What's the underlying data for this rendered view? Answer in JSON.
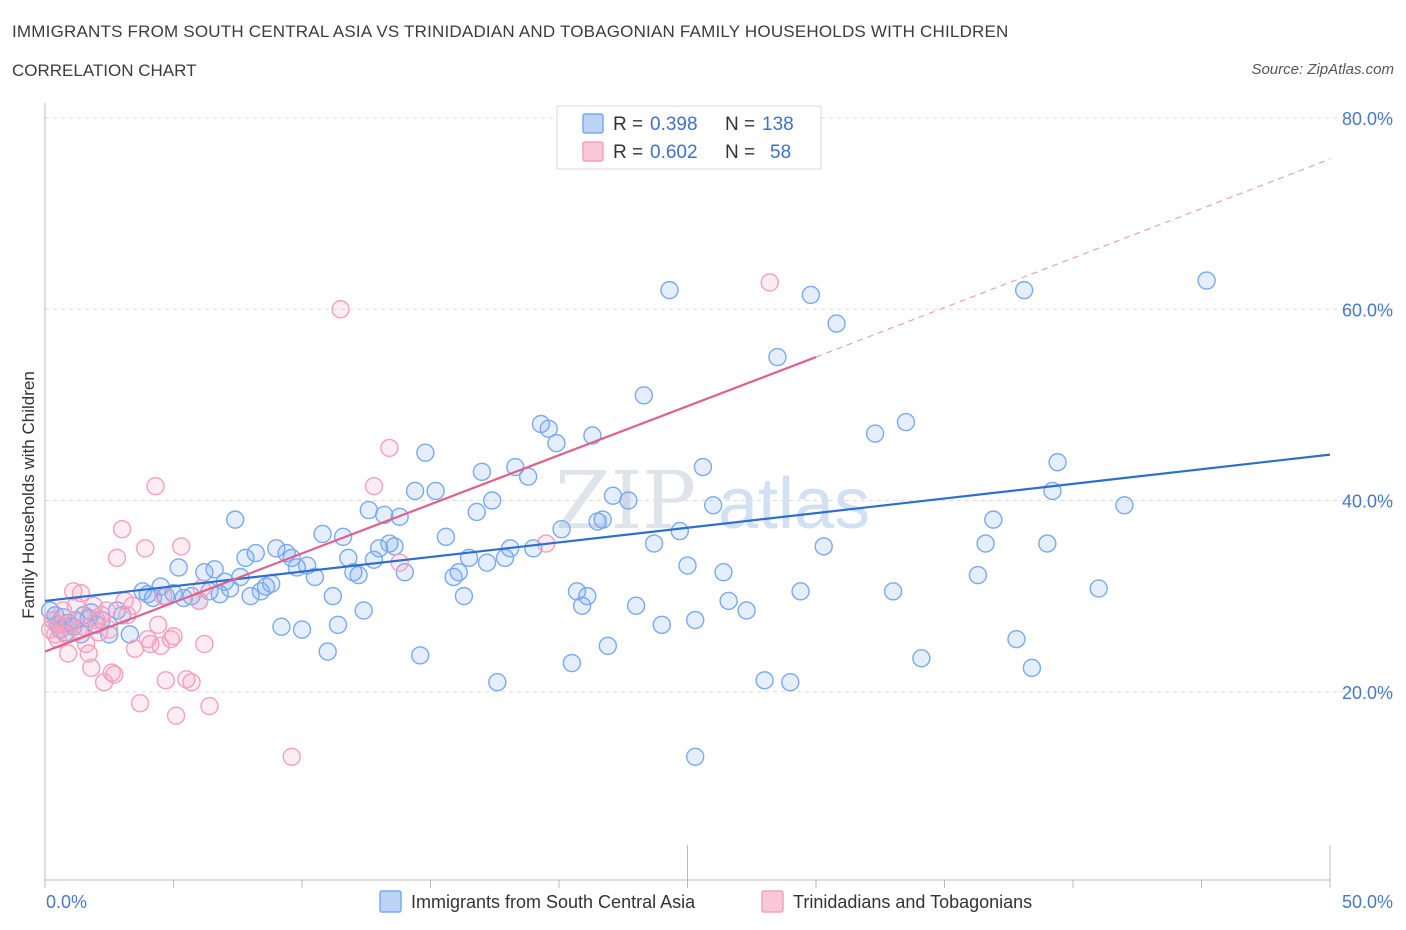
{
  "chart_data": {
    "type": "scatter",
    "title": "IMMIGRANTS FROM SOUTH CENTRAL ASIA VS TRINIDADIAN AND TOBAGONIAN FAMILY HOUSEHOLDS WITH CHILDREN",
    "subtitle": "CORRELATION CHART",
    "source": "Source: ZipAtlas.com",
    "ylabel": "Family Households with Children",
    "xlim": [
      0,
      50
    ],
    "ylim": [
      0,
      80
    ],
    "x_tick_labels": {
      "min": "0.0%",
      "max": "50.0%"
    },
    "y_ticks": [
      20,
      40,
      60,
      80
    ],
    "y_tick_labels": [
      "20.0%",
      "40.0%",
      "60.0%",
      "80.0%"
    ],
    "watermark": {
      "zip": "ZIP",
      "atlas": "atlas"
    },
    "legend": [
      {
        "r_label": "R =",
        "r_value": "0.398",
        "n_label": "N =",
        "n_value": "138"
      },
      {
        "r_label": "R =",
        "r_value": "0.602",
        "n_label": "N =",
        "n_value": "58"
      }
    ],
    "series": [
      {
        "name": "Immigrants from South Central Asia",
        "color": "#7aaaf0",
        "line_color": "#2d6fd1",
        "trend": {
          "x0": 0,
          "y0": 29.5,
          "x1": 50,
          "y1": 44.8
        },
        "points": [
          [
            0.2,
            28.5
          ],
          [
            0.3,
            27.5
          ],
          [
            0.4,
            28.0
          ],
          [
            0.5,
            27.0
          ],
          [
            0.6,
            26.5
          ],
          [
            0.7,
            27.8
          ],
          [
            0.8,
            26.2
          ],
          [
            0.9,
            27.2
          ],
          [
            1.0,
            27.0
          ],
          [
            1.1,
            26.8
          ],
          [
            1.2,
            27.5
          ],
          [
            1.4,
            26.0
          ],
          [
            1.5,
            28.0
          ],
          [
            1.7,
            27.7
          ],
          [
            1.8,
            28.3
          ],
          [
            2.0,
            27.0
          ],
          [
            2.2,
            27.5
          ],
          [
            2.5,
            26.0
          ],
          [
            2.8,
            28.5
          ],
          [
            3.0,
            28.0
          ],
          [
            3.3,
            26.0
          ],
          [
            3.8,
            30.5
          ],
          [
            4.0,
            30.2
          ],
          [
            4.2,
            29.8
          ],
          [
            4.5,
            31.0
          ],
          [
            4.7,
            30.0
          ],
          [
            5.0,
            30.3
          ],
          [
            5.2,
            33.0
          ],
          [
            5.4,
            29.8
          ],
          [
            5.7,
            30.0
          ],
          [
            6.0,
            29.5
          ],
          [
            6.2,
            32.5
          ],
          [
            6.4,
            30.5
          ],
          [
            6.6,
            32.8
          ],
          [
            6.8,
            30.2
          ],
          [
            7.0,
            31.5
          ],
          [
            7.2,
            30.8
          ],
          [
            7.4,
            38.0
          ],
          [
            7.6,
            32.0
          ],
          [
            7.8,
            34.0
          ],
          [
            8.0,
            30.0
          ],
          [
            8.2,
            34.5
          ],
          [
            8.4,
            30.5
          ],
          [
            8.6,
            31.0
          ],
          [
            8.8,
            31.3
          ],
          [
            9.0,
            35.0
          ],
          [
            9.2,
            26.8
          ],
          [
            9.4,
            34.5
          ],
          [
            9.6,
            34.0
          ],
          [
            9.8,
            33.0
          ],
          [
            10.0,
            26.5
          ],
          [
            10.2,
            33.2
          ],
          [
            10.5,
            32.0
          ],
          [
            10.8,
            36.5
          ],
          [
            11.0,
            24.2
          ],
          [
            11.2,
            30.0
          ],
          [
            11.4,
            27.0
          ],
          [
            11.6,
            36.2
          ],
          [
            11.8,
            34.0
          ],
          [
            12.0,
            32.5
          ],
          [
            12.2,
            32.2
          ],
          [
            12.4,
            28.5
          ],
          [
            12.6,
            39.0
          ],
          [
            12.8,
            33.8
          ],
          [
            13.0,
            35.0
          ],
          [
            13.2,
            38.5
          ],
          [
            13.4,
            35.5
          ],
          [
            13.6,
            35.2
          ],
          [
            13.8,
            38.3
          ],
          [
            14.0,
            32.5
          ],
          [
            14.4,
            41.0
          ],
          [
            14.6,
            23.8
          ],
          [
            14.8,
            45.0
          ],
          [
            15.2,
            41.0
          ],
          [
            15.6,
            36.2
          ],
          [
            15.9,
            32.0
          ],
          [
            16.1,
            32.5
          ],
          [
            16.3,
            30.0
          ],
          [
            16.5,
            34.0
          ],
          [
            16.8,
            38.8
          ],
          [
            17.0,
            43.0
          ],
          [
            17.2,
            33.5
          ],
          [
            17.4,
            40.0
          ],
          [
            17.6,
            21.0
          ],
          [
            17.9,
            34.0
          ],
          [
            18.1,
            35.0
          ],
          [
            18.3,
            43.5
          ],
          [
            18.8,
            42.5
          ],
          [
            19.0,
            35.0
          ],
          [
            19.3,
            48.0
          ],
          [
            19.6,
            47.5
          ],
          [
            19.9,
            46.0
          ],
          [
            20.1,
            37.0
          ],
          [
            20.5,
            23.0
          ],
          [
            20.7,
            30.5
          ],
          [
            20.9,
            29.0
          ],
          [
            21.1,
            30.0
          ],
          [
            21.3,
            46.8
          ],
          [
            21.5,
            37.8
          ],
          [
            21.7,
            38.0
          ],
          [
            21.9,
            24.8
          ],
          [
            22.1,
            40.5
          ],
          [
            22.7,
            40.0
          ],
          [
            23.0,
            29.0
          ],
          [
            23.3,
            51.0
          ],
          [
            23.7,
            35.5
          ],
          [
            24.0,
            27.0
          ],
          [
            24.3,
            62.0
          ],
          [
            24.7,
            36.8
          ],
          [
            25.0,
            33.2
          ],
          [
            25.3,
            27.5
          ],
          [
            25.6,
            43.5
          ],
          [
            26.0,
            39.5
          ],
          [
            26.4,
            32.5
          ],
          [
            26.6,
            29.5
          ],
          [
            27.3,
            28.5
          ],
          [
            28.0,
            21.2
          ],
          [
            28.5,
            55.0
          ],
          [
            29.0,
            21.0
          ],
          [
            29.4,
            30.5
          ],
          [
            29.8,
            61.5
          ],
          [
            30.3,
            35.2
          ],
          [
            30.8,
            58.5
          ],
          [
            32.3,
            47.0
          ],
          [
            33.0,
            30.5
          ],
          [
            33.5,
            48.2
          ],
          [
            34.1,
            23.5
          ],
          [
            36.3,
            32.2
          ],
          [
            36.6,
            35.5
          ],
          [
            36.9,
            38.0
          ],
          [
            37.8,
            25.5
          ],
          [
            38.1,
            62.0
          ],
          [
            38.4,
            22.5
          ],
          [
            39.0,
            35.5
          ],
          [
            39.2,
            41.0
          ],
          [
            39.4,
            44.0
          ],
          [
            41.0,
            30.8
          ],
          [
            42.0,
            39.5
          ],
          [
            45.2,
            63.0
          ],
          [
            25.3,
            13.2
          ]
        ]
      },
      {
        "name": "Trinidadians and Tobagonians",
        "color": "#f5a0bc",
        "line_color": "#e0608c",
        "trend": {
          "x0": 0,
          "y0": 24.2,
          "x1": 30.0,
          "y1": 55.0,
          "dashed_to_x": 50,
          "dashed_to_y": 75.7
        },
        "points": [
          [
            0.2,
            26.5
          ],
          [
            0.3,
            27.5
          ],
          [
            0.4,
            26.0
          ],
          [
            0.5,
            25.5
          ],
          [
            0.6,
            27.0
          ],
          [
            0.7,
            28.5
          ],
          [
            0.8,
            26.0
          ],
          [
            0.9,
            24.0
          ],
          [
            1.0,
            27.0
          ],
          [
            1.1,
            30.5
          ],
          [
            1.2,
            29.0
          ],
          [
            1.3,
            26.5
          ],
          [
            1.4,
            30.3
          ],
          [
            1.5,
            26.8
          ],
          [
            1.6,
            25.0
          ],
          [
            1.7,
            24.0
          ],
          [
            1.8,
            22.5
          ],
          [
            1.9,
            29.0
          ],
          [
            2.0,
            27.5
          ],
          [
            2.1,
            26.2
          ],
          [
            2.2,
            28.0
          ],
          [
            2.3,
            21.0
          ],
          [
            2.4,
            28.5
          ],
          [
            2.5,
            26.5
          ],
          [
            2.6,
            22.0
          ],
          [
            2.7,
            21.8
          ],
          [
            2.8,
            34.0
          ],
          [
            3.0,
            37.0
          ],
          [
            3.1,
            29.5
          ],
          [
            3.2,
            28.0
          ],
          [
            3.4,
            29.0
          ],
          [
            3.5,
            24.5
          ],
          [
            3.7,
            18.8
          ],
          [
            3.9,
            35.0
          ],
          [
            4.0,
            25.5
          ],
          [
            4.1,
            25.0
          ],
          [
            4.3,
            41.5
          ],
          [
            4.4,
            27.0
          ],
          [
            4.5,
            24.8
          ],
          [
            4.7,
            21.2
          ],
          [
            4.9,
            25.5
          ],
          [
            5.0,
            25.8
          ],
          [
            5.1,
            17.5
          ],
          [
            5.3,
            35.2
          ],
          [
            5.5,
            21.3
          ],
          [
            5.7,
            21.0
          ],
          [
            6.0,
            29.5
          ],
          [
            6.2,
            25.0
          ],
          [
            6.4,
            18.5
          ],
          [
            9.6,
            13.2
          ],
          [
            11.5,
            60.0
          ],
          [
            12.8,
            41.5
          ],
          [
            13.4,
            45.5
          ],
          [
            13.8,
            33.5
          ],
          [
            19.5,
            35.5
          ],
          [
            28.2,
            62.8
          ],
          [
            4.6,
            30.0
          ],
          [
            6.1,
            30.8
          ]
        ]
      }
    ]
  }
}
